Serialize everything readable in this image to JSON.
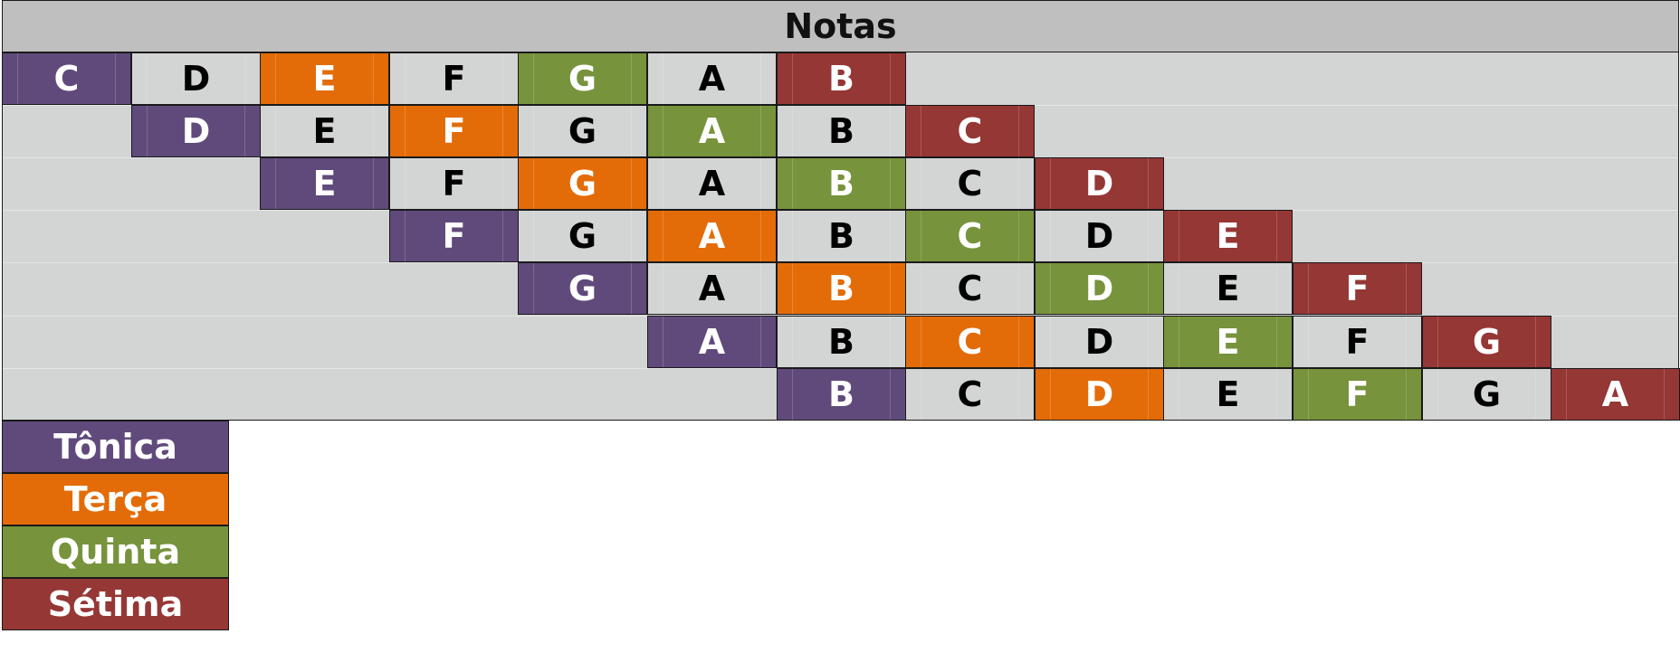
{
  "header": {
    "title": "Notas"
  },
  "colors": {
    "tonica": "#604a7b",
    "terca": "#e36c09",
    "quinta": "#77933c",
    "setima": "#953735",
    "plain": "#d3d4d4"
  },
  "rows": [
    [
      "C",
      "D",
      "E",
      "F",
      "G",
      "A",
      "B"
    ],
    [
      "D",
      "E",
      "F",
      "G",
      "A",
      "B",
      "C"
    ],
    [
      "E",
      "F",
      "G",
      "A",
      "B",
      "C",
      "D"
    ],
    [
      "F",
      "G",
      "A",
      "B",
      "C",
      "D",
      "E"
    ],
    [
      "G",
      "A",
      "B",
      "C",
      "D",
      "E",
      "F"
    ],
    [
      "A",
      "B",
      "C",
      "D",
      "E",
      "F",
      "G"
    ],
    [
      "B",
      "C",
      "D",
      "E",
      "F",
      "G",
      "A"
    ]
  ],
  "legend": [
    {
      "label": "Tônica",
      "role": "tonica"
    },
    {
      "label": "Terça",
      "role": "terca"
    },
    {
      "label": "Quinta",
      "role": "quinta"
    },
    {
      "label": "Sétima",
      "role": "setima"
    }
  ]
}
